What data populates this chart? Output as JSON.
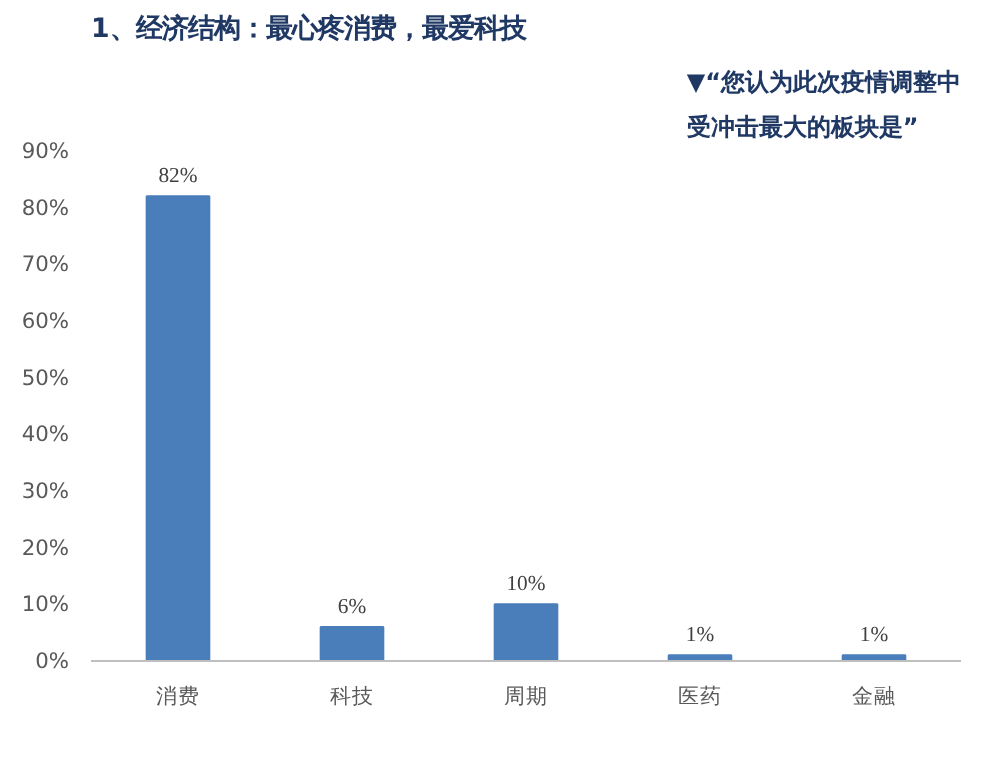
{
  "chart_data": {
    "type": "bar",
    "title": "1、经济结构：最心疼消费，最爱科技",
    "subtitle": "▼“您认为此次疫情调整中受冲击最大的板块是”",
    "categories": [
      "消费",
      "科技",
      "周期",
      "医药",
      "金融"
    ],
    "values": [
      82,
      6,
      10,
      1,
      1
    ],
    "value_labels": [
      "82%",
      "6%",
      "10%",
      "1%",
      "1%"
    ],
    "color": "#4a7ebb",
    "ylim": [
      0,
      90
    ],
    "yticks": [
      {
        "value": 0,
        "label": "0%"
      },
      {
        "value": 10,
        "label": "10%"
      },
      {
        "value": 20,
        "label": "20%"
      },
      {
        "value": 30,
        "label": "30%"
      },
      {
        "value": 40,
        "label": "40%"
      },
      {
        "value": 50,
        "label": "50%"
      },
      {
        "value": 60,
        "label": "60%"
      },
      {
        "value": 70,
        "label": "70%"
      },
      {
        "value": 80,
        "label": "80%"
      },
      {
        "value": 90,
        "label": "90%"
      }
    ],
    "grid": false
  }
}
